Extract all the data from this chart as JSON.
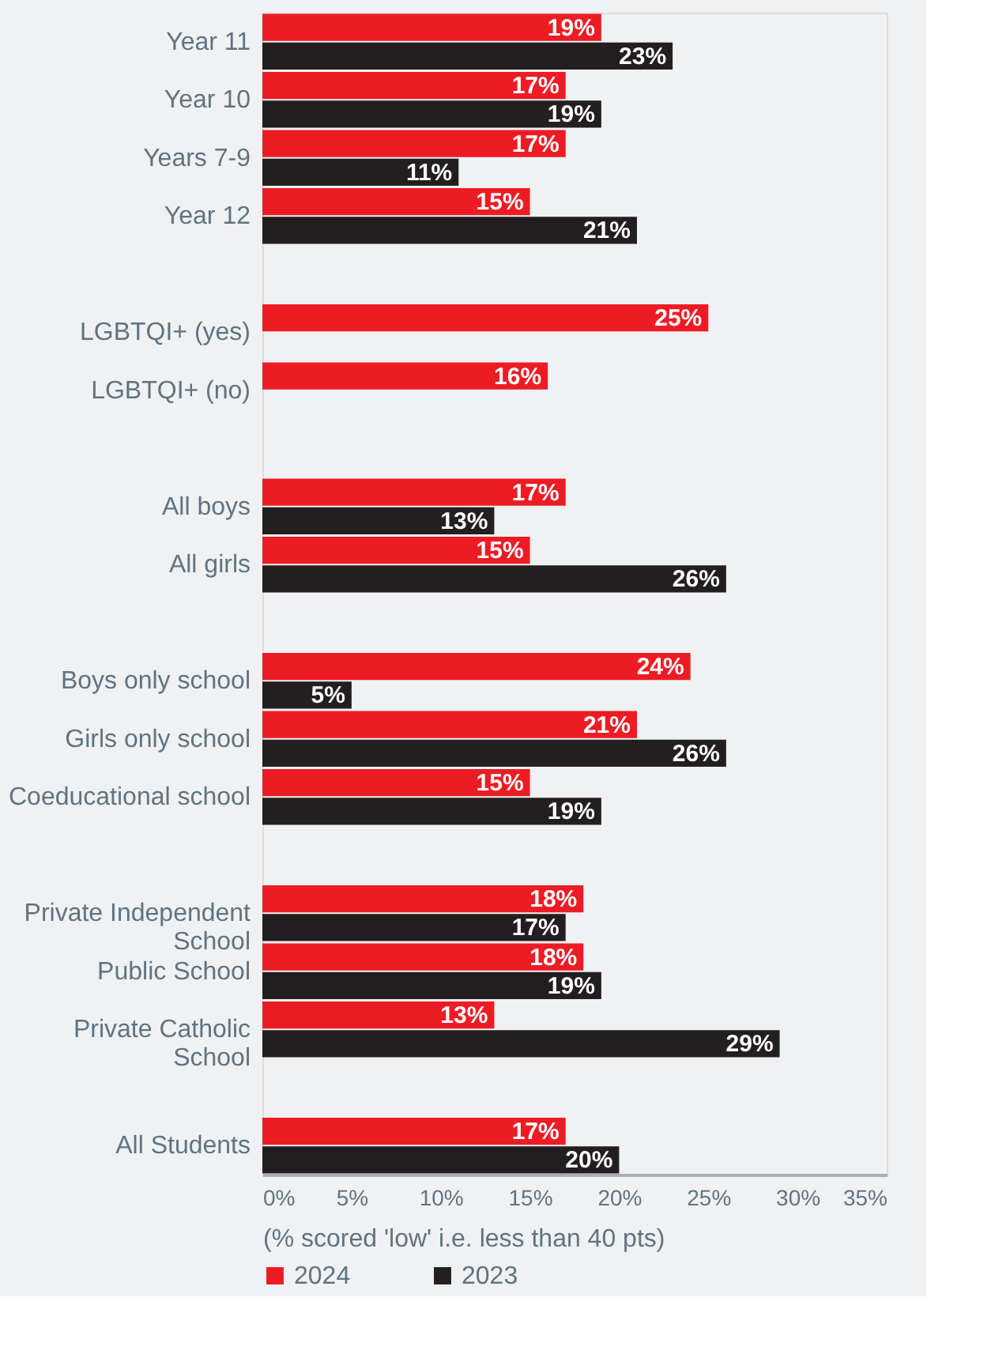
{
  "chart_data": {
    "type": "bar",
    "orientation": "horizontal",
    "categories": [
      "Year 11",
      "Year 10",
      "Years 7-9",
      "Year 12",
      null,
      "LGBTQI+ (yes)",
      "LGBTQI+ (no)",
      null,
      "All boys",
      "All girls",
      null,
      "Boys only school",
      "Girls only school",
      "Coeducational school",
      null,
      "Private Independent School",
      "Public School",
      "Private Catholic School",
      null,
      "All Students"
    ],
    "series": [
      {
        "name": "2024",
        "color": "#ed1c24",
        "values": [
          19,
          17,
          17,
          15,
          null,
          25,
          16,
          null,
          17,
          15,
          null,
          24,
          21,
          15,
          null,
          18,
          18,
          13,
          null,
          17
        ],
        "value_labels": [
          "19%",
          "17%",
          "17%",
          "15%",
          null,
          "25%",
          "16%",
          null,
          "17%",
          "15%",
          null,
          "24%",
          "21%",
          "15%",
          null,
          "18%",
          "18%",
          "13%",
          null,
          "17%"
        ]
      },
      {
        "name": "2023",
        "color": "#231f20",
        "values": [
          23,
          19,
          11,
          21,
          null,
          null,
          null,
          null,
          13,
          26,
          null,
          5,
          26,
          19,
          null,
          17,
          19,
          29,
          null,
          20
        ],
        "value_labels": [
          "23%",
          "19%",
          "11%",
          "21%",
          null,
          null,
          null,
          null,
          "13%",
          "26%",
          null,
          "5%",
          "26%",
          "19%",
          null,
          "17%",
          "19%",
          "29%",
          null,
          "20%"
        ]
      }
    ],
    "xlabel": "(% scored 'low' i.e. less than 40 pts)",
    "xlim": [
      0,
      35
    ],
    "xticks": [
      {
        "value": 0,
        "label": "0%"
      },
      {
        "value": 5,
        "label": "5%"
      },
      {
        "value": 10,
        "label": "10%"
      },
      {
        "value": 15,
        "label": "15%"
      },
      {
        "value": 20,
        "label": "20%"
      },
      {
        "value": 25,
        "label": "25%"
      },
      {
        "value": 30,
        "label": "30%"
      },
      {
        "value": 35,
        "label": "35%"
      }
    ],
    "grid": false,
    "legend": "bottom left"
  }
}
